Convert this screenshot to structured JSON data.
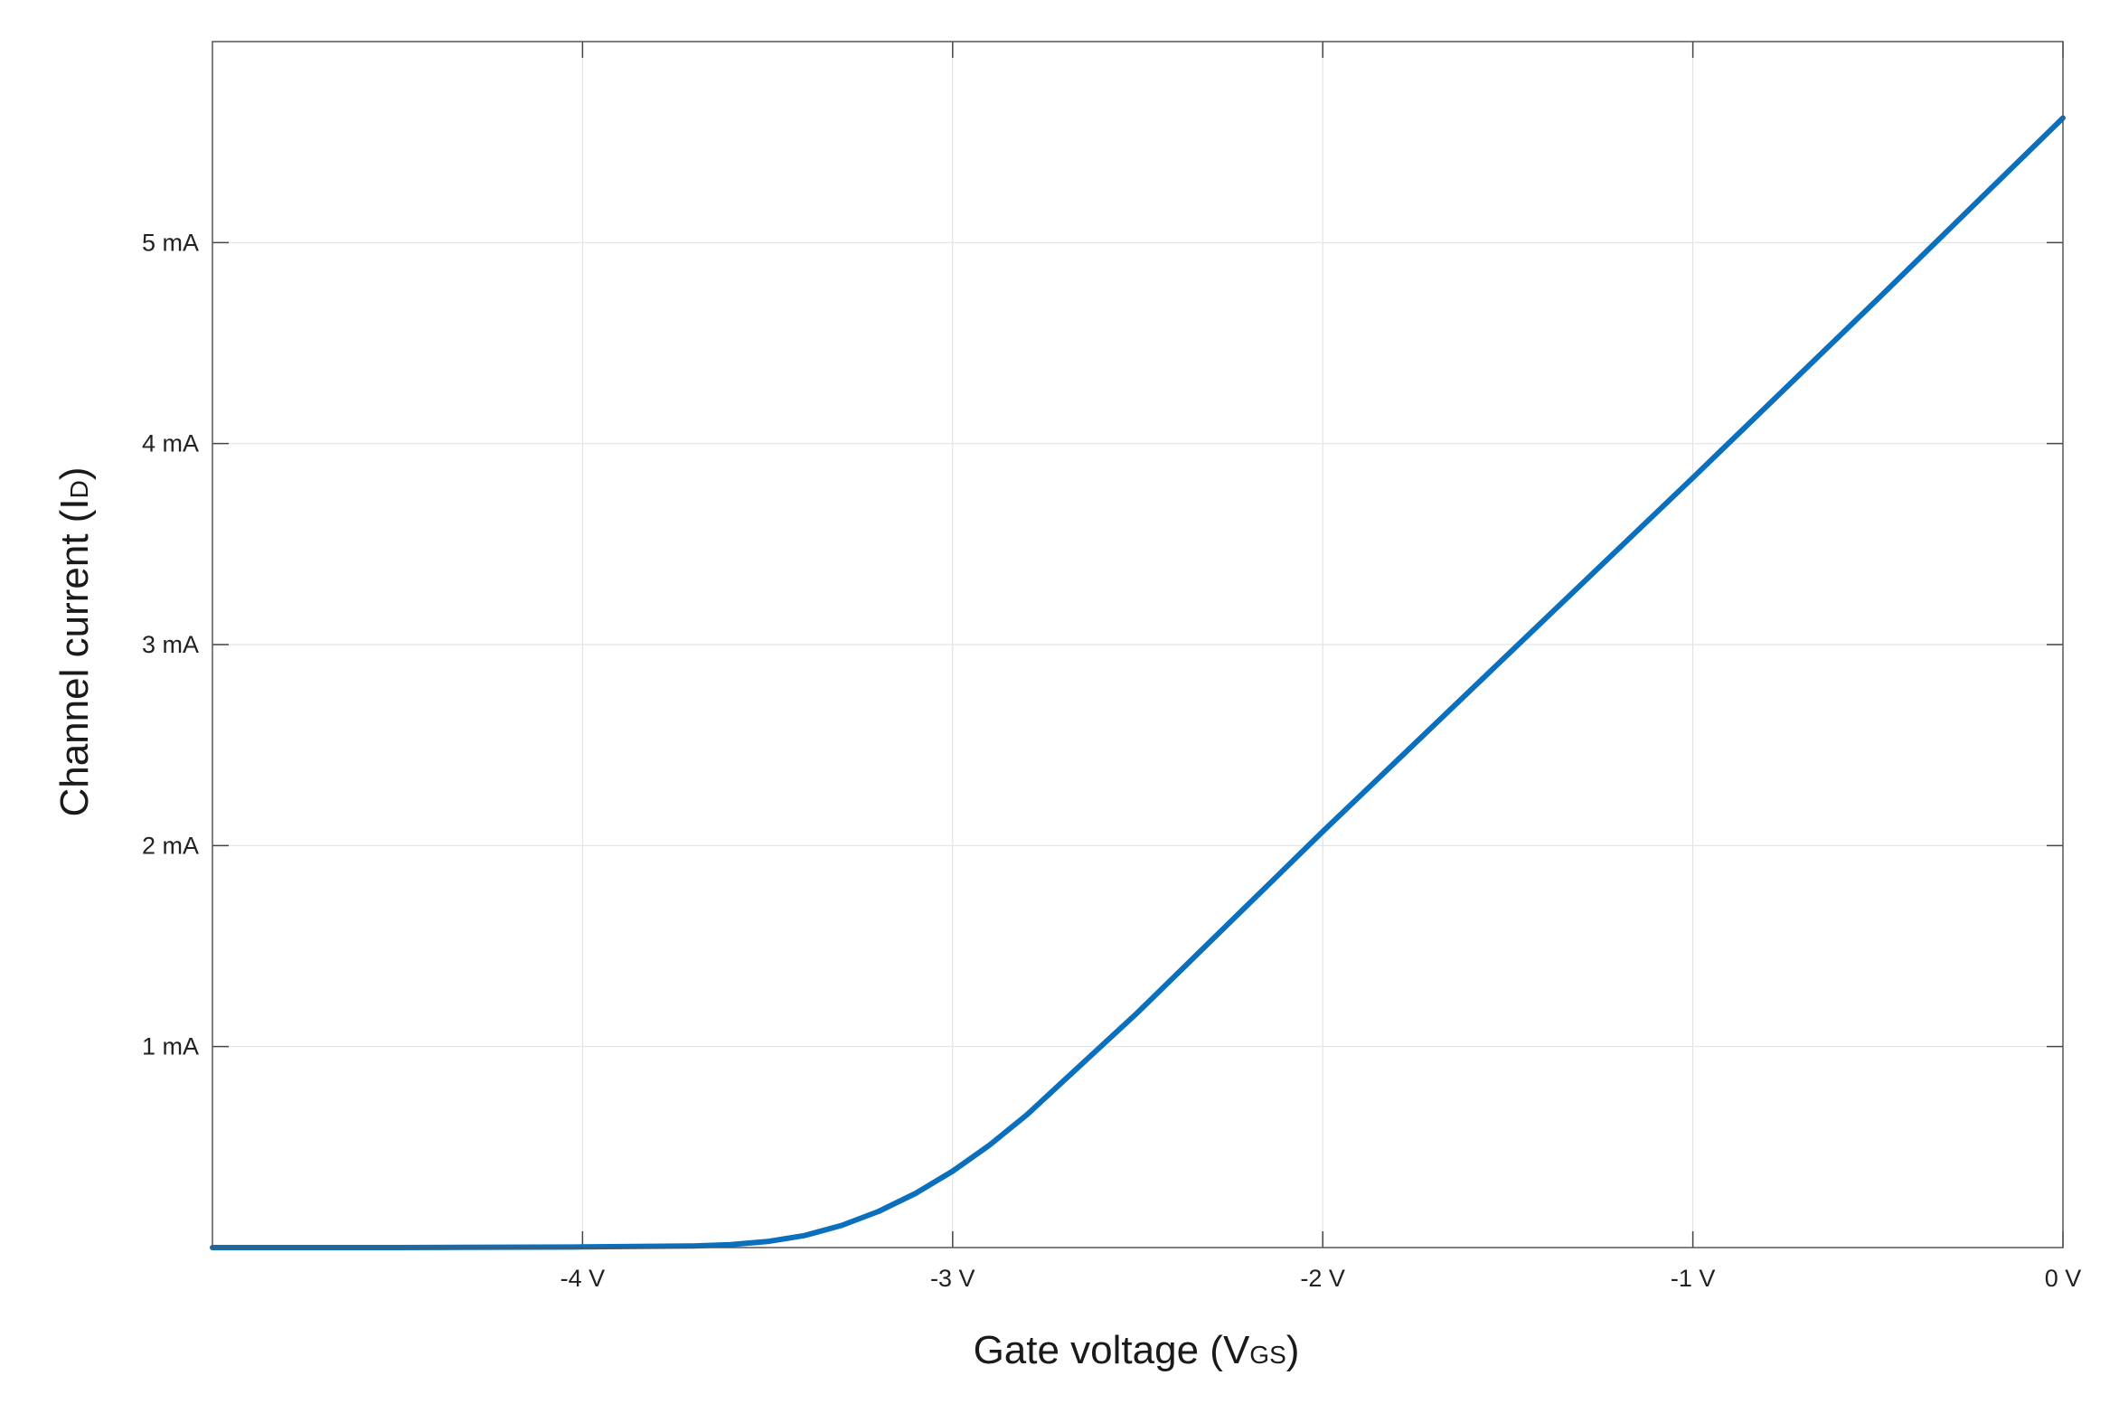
{
  "chart_data": {
    "type": "line",
    "title": "",
    "xlabel": {
      "main": "Gate voltage (V",
      "sub": "GS",
      "end": ")"
    },
    "ylabel": {
      "main": "Channel current (I",
      "sub": "D",
      "end": ")"
    },
    "xlim": [
      -5,
      0
    ],
    "ylim": [
      0,
      6
    ],
    "x_unit": "V",
    "y_unit": "mA",
    "grid": true,
    "x_ticks": [
      {
        "value": -4,
        "label": "-4 V"
      },
      {
        "value": -3,
        "label": "-3 V"
      },
      {
        "value": -2,
        "label": "-2 V"
      },
      {
        "value": -1,
        "label": "-1 V"
      },
      {
        "value": 0,
        "label": "0 V"
      }
    ],
    "y_ticks": [
      {
        "value": 1,
        "label": "1 mA"
      },
      {
        "value": 2,
        "label": "2 mA"
      },
      {
        "value": 3,
        "label": "3 mA"
      },
      {
        "value": 4,
        "label": "4 mA"
      },
      {
        "value": 5,
        "label": "5 mA"
      }
    ],
    "series": [
      {
        "color": "#0a6fbd",
        "x": [
          -5.0,
          -4.5,
          -4.0,
          -3.7,
          -3.6,
          -3.5,
          -3.4,
          -3.3,
          -3.2,
          -3.1,
          -3.0,
          -2.9,
          -2.8,
          -2.7,
          -2.6,
          -2.5,
          -2.0,
          -1.5,
          -1.0,
          -0.5,
          0.0
        ],
        "y": [
          0.0,
          0.0,
          0.003,
          0.008,
          0.015,
          0.03,
          0.06,
          0.11,
          0.18,
          0.27,
          0.38,
          0.51,
          0.66,
          0.83,
          1.0,
          1.17,
          2.07,
          2.95,
          3.83,
          4.72,
          5.62
        ]
      }
    ]
  }
}
